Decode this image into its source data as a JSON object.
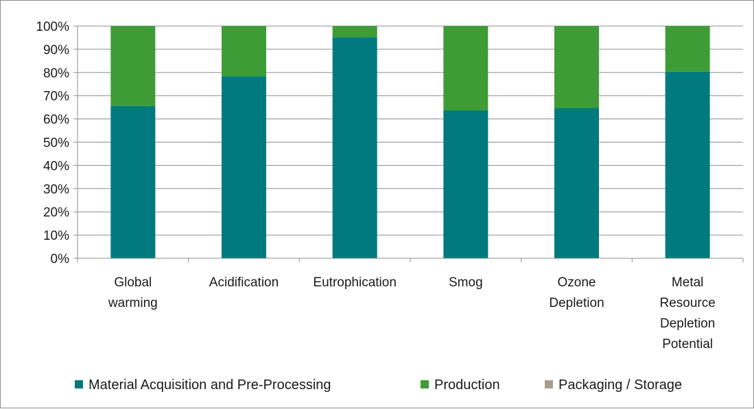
{
  "chart_data": {
    "type": "bar",
    "stacked": true,
    "percent_stacked": true,
    "categories": [
      [
        "Global",
        "warming"
      ],
      [
        "Acidification"
      ],
      [
        "Eutrophication"
      ],
      [
        "Smog"
      ],
      [
        "Ozone",
        "Depletion"
      ],
      [
        "Metal",
        "Resource",
        "Depletion",
        "Potential"
      ]
    ],
    "series": [
      {
        "name": "Material Acquisition and Pre-Processing",
        "color": "#007a7f",
        "values": [
          65.5,
          78.3,
          95.2,
          63.7,
          64.6,
          80.3
        ]
      },
      {
        "name": "Production",
        "color": "#3d9c36",
        "values": [
          34.5,
          21.7,
          4.8,
          36.3,
          35.4,
          19.7
        ]
      },
      {
        "name": "Packaging / Storage",
        "color": "#a89c8f",
        "values": [
          0,
          0,
          0,
          0,
          0,
          0
        ]
      }
    ],
    "y_ticks": [
      "0%",
      "10%",
      "20%",
      "30%",
      "40%",
      "50%",
      "60%",
      "70%",
      "80%",
      "90%",
      "100%"
    ],
    "ylim": [
      0,
      100
    ],
    "grid": true,
    "legend_position": "bottom"
  }
}
